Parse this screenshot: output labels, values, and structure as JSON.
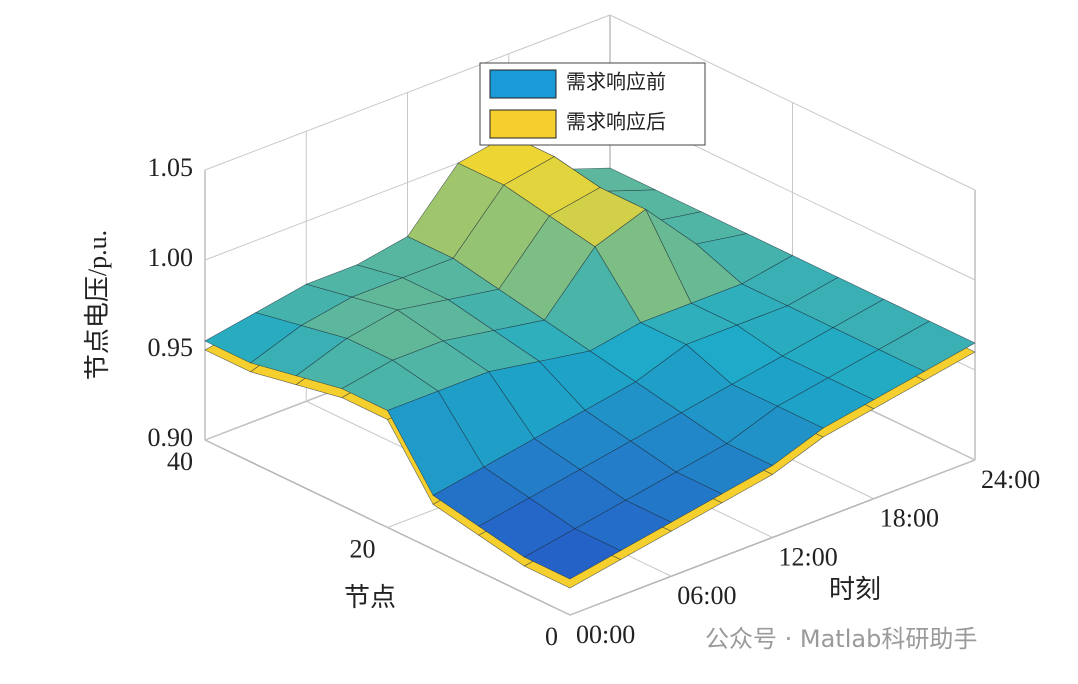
{
  "chart_data": {
    "type": "surface3d",
    "zlabel": "节点电压/p.u.",
    "xlabel": "时刻",
    "ylabel": "节点",
    "x": [
      0,
      3,
      6,
      9,
      12,
      15,
      18,
      21,
      24
    ],
    "y": [
      0,
      5,
      10,
      15,
      20,
      25,
      30,
      35,
      40
    ],
    "xlim": [
      0,
      24
    ],
    "ylim": [
      0,
      40
    ],
    "zlim": [
      0.9,
      1.05
    ],
    "xticks": [
      {
        "value": 0,
        "label": "00:00"
      },
      {
        "value": 6,
        "label": "06:00"
      },
      {
        "value": 12,
        "label": "12:00"
      },
      {
        "value": 18,
        "label": "18:00"
      },
      {
        "value": 24,
        "label": "24:00"
      }
    ],
    "yticks": [
      0,
      20,
      40
    ],
    "zticks": [
      {
        "value": 0.9,
        "label": "0.90"
      },
      {
        "value": 0.95,
        "label": "0.95"
      },
      {
        "value": 1.0,
        "label": "1.00"
      },
      {
        "value": 1.05,
        "label": "1.05"
      }
    ],
    "grid": true,
    "legend": "top",
    "series": [
      {
        "name": "需求响应前",
        "color": "#1a9ad6",
        "values": [
          [
            0.92,
            0.925,
            0.93,
            0.935,
            0.94,
            0.95,
            0.955,
            0.96,
            0.965
          ],
          [
            0.92,
            0.925,
            0.93,
            0.935,
            0.94,
            0.95,
            0.955,
            0.96,
            0.965
          ],
          [
            0.925,
            0.93,
            0.935,
            0.94,
            0.945,
            0.95,
            0.955,
            0.96,
            0.965
          ],
          [
            0.93,
            0.935,
            0.94,
            0.945,
            0.95,
            0.96,
            0.96,
            0.96,
            0.965
          ],
          [
            0.965,
            0.965,
            0.965,
            0.96,
            0.955,
            0.96,
            0.96,
            0.96,
            0.965
          ],
          [
            0.965,
            0.97,
            0.97,
            0.965,
            0.96,
            0.99,
            1.0,
            0.97,
            0.965
          ],
          [
            0.96,
            0.97,
            0.975,
            0.97,
            0.965,
            0.995,
            1.0,
            0.97,
            0.965
          ],
          [
            0.955,
            0.965,
            0.97,
            0.97,
            0.97,
            1.0,
            1.005,
            0.975,
            0.965
          ],
          [
            0.955,
            0.96,
            0.965,
            0.965,
            0.97,
            1.0,
            1.005,
            0.975,
            0.965
          ]
        ]
      },
      {
        "name": "需求响应后",
        "color": "#f5cf2d",
        "values": [
          [
            0.915,
            0.92,
            0.925,
            0.93,
            0.935,
            0.945,
            0.95,
            0.955,
            0.96
          ],
          [
            0.915,
            0.92,
            0.925,
            0.93,
            0.935,
            0.945,
            0.95,
            0.955,
            0.96
          ],
          [
            0.92,
            0.925,
            0.93,
            0.935,
            0.94,
            0.945,
            0.95,
            0.955,
            0.96
          ],
          [
            0.925,
            0.93,
            0.935,
            0.94,
            0.945,
            0.955,
            0.955,
            0.955,
            0.96
          ],
          [
            0.96,
            0.96,
            0.96,
            0.955,
            0.95,
            0.955,
            0.955,
            0.955,
            0.96
          ],
          [
            0.96,
            0.965,
            0.965,
            0.96,
            0.955,
            0.98,
            0.985,
            0.965,
            0.96
          ],
          [
            0.955,
            0.965,
            0.97,
            0.965,
            0.96,
            0.985,
            0.985,
            0.965,
            0.96
          ],
          [
            0.95,
            0.96,
            0.965,
            0.965,
            0.965,
            0.985,
            0.99,
            0.97,
            0.96
          ],
          [
            0.95,
            0.955,
            0.96,
            0.96,
            0.965,
            0.985,
            0.99,
            0.97,
            0.96
          ]
        ]
      }
    ]
  },
  "watermark": "公众号 · Matlab科研助手"
}
